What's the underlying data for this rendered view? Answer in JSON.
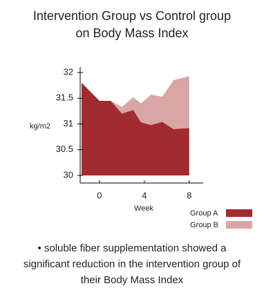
{
  "chart_data": {
    "type": "area",
    "title": [
      "Intervention Group vs Control group",
      "on Body Mass Index"
    ],
    "x_label": "Week",
    "y_label": "kg/m2",
    "x": [
      -1.6,
      0,
      1,
      2,
      3,
      3.7,
      4.6,
      5.6,
      6.6,
      8
    ],
    "series": [
      {
        "name": "Group B",
        "color": "#d9a6a6",
        "values": [
          31.8,
          31.45,
          31.45,
          31.33,
          31.52,
          31.4,
          31.57,
          31.53,
          31.85,
          31.93
        ]
      },
      {
        "name": "Group A",
        "color": "#a12b2f",
        "values": [
          31.8,
          31.45,
          31.45,
          31.2,
          31.27,
          31.03,
          30.98,
          31.04,
          30.9,
          30.92
        ]
      }
    ],
    "xlim": [
      -1.6,
      9
    ],
    "xticks": [
      0,
      4,
      8
    ],
    "ylim": [
      30,
      32
    ],
    "yticks": [
      30,
      30.5,
      31,
      31.5,
      32
    ],
    "annotation": [
      "• soluble fiber supplementation showed a",
      "significant reduction in the intervention group of",
      "their Body Mass Index"
    ]
  }
}
